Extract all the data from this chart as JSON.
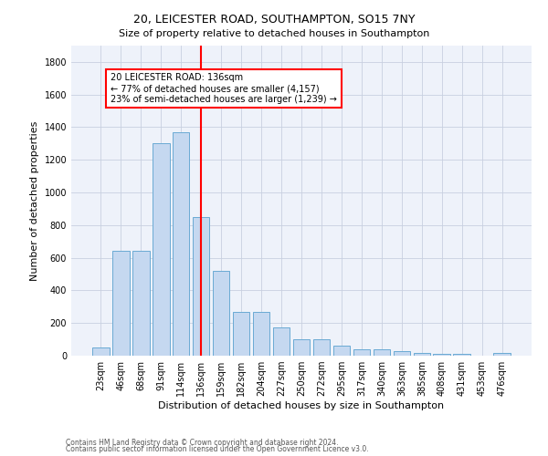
{
  "title1": "20, LEICESTER ROAD, SOUTHAMPTON, SO15 7NY",
  "title2": "Size of property relative to detached houses in Southampton",
  "xlabel": "Distribution of detached houses by size in Southampton",
  "ylabel": "Number of detached properties",
  "categories": [
    "23sqm",
    "46sqm",
    "68sqm",
    "91sqm",
    "114sqm",
    "136sqm",
    "159sqm",
    "182sqm",
    "204sqm",
    "227sqm",
    "250sqm",
    "272sqm",
    "295sqm",
    "317sqm",
    "340sqm",
    "363sqm",
    "385sqm",
    "408sqm",
    "431sqm",
    "453sqm",
    "476sqm"
  ],
  "bar_heights": [
    50,
    640,
    640,
    1300,
    1370,
    850,
    520,
    270,
    270,
    175,
    100,
    100,
    60,
    40,
    40,
    28,
    15,
    10,
    10,
    0,
    15
  ],
  "bar_color": "#c5d8f0",
  "bar_edge_color": "#6aaad4",
  "vline_x_index": 5,
  "vline_color": "red",
  "annotation_text": "20 LEICESTER ROAD: 136sqm\n← 77% of detached houses are smaller (4,157)\n23% of semi-detached houses are larger (1,239) →",
  "annotation_box_color": "red",
  "annotation_bg": "white",
  "ylim": [
    0,
    1900
  ],
  "yticks": [
    0,
    200,
    400,
    600,
    800,
    1000,
    1200,
    1400,
    1600,
    1800
  ],
  "footer1": "Contains HM Land Registry data © Crown copyright and database right 2024.",
  "footer2": "Contains public sector information licensed under the Open Government Licence v3.0.",
  "background_color": "#eef2fa",
  "grid_color": "#c8d0e0",
  "title_fontsize": 9,
  "subtitle_fontsize": 8,
  "xlabel_fontsize": 8,
  "ylabel_fontsize": 8,
  "tick_fontsize": 7,
  "annotation_fontsize": 7,
  "footer_fontsize": 5.5
}
